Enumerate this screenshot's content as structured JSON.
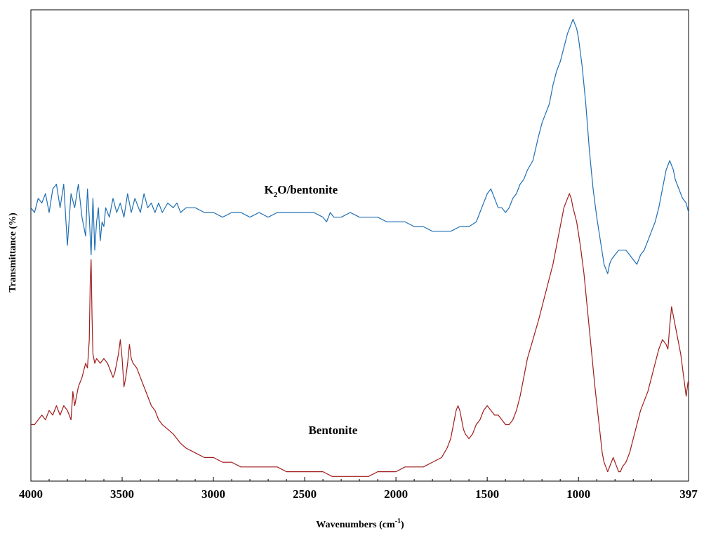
{
  "chart_data": {
    "type": "line",
    "title": "",
    "xlabel": "Wavenumbers (cm",
    "xlabel_sup": "-1",
    "xlabel_end": ")",
    "ylabel": "Transmittance (%)",
    "xlim": [
      4000,
      397
    ],
    "x_reversed": true,
    "ylim": [
      0,
      100
    ],
    "grid": false,
    "y_ticks_shown": false,
    "x_ticks": [
      {
        "value": 4000,
        "label": "4000"
      },
      {
        "value": 3500,
        "label": "3500"
      },
      {
        "value": 3000,
        "label": "3000"
      },
      {
        "value": 2500,
        "label": "2500"
      },
      {
        "value": 2000,
        "label": "2000"
      },
      {
        "value": 1500,
        "label": "1500"
      },
      {
        "value": 1000,
        "label": "1000"
      },
      {
        "value": 397,
        "label": "397"
      }
    ],
    "series": [
      {
        "name": "K2O/bentonite",
        "label_main": "K",
        "label_sub": "2",
        "label_rest": "O/bentonite",
        "label_anchor": [
          2520,
          61
        ],
        "color": "#1f6fb4",
        "points": [
          [
            4000,
            58
          ],
          [
            3980,
            57
          ],
          [
            3960,
            60
          ],
          [
            3940,
            59
          ],
          [
            3920,
            61
          ],
          [
            3900,
            57
          ],
          [
            3880,
            62
          ],
          [
            3860,
            63
          ],
          [
            3840,
            58
          ],
          [
            3820,
            63
          ],
          [
            3800,
            50
          ],
          [
            3780,
            61
          ],
          [
            3760,
            58
          ],
          [
            3740,
            63
          ],
          [
            3720,
            56
          ],
          [
            3700,
            52
          ],
          [
            3690,
            62
          ],
          [
            3680,
            56
          ],
          [
            3670,
            48
          ],
          [
            3660,
            60
          ],
          [
            3650,
            49
          ],
          [
            3640,
            55
          ],
          [
            3630,
            58
          ],
          [
            3620,
            51
          ],
          [
            3610,
            55
          ],
          [
            3600,
            54
          ],
          [
            3590,
            58
          ],
          [
            3570,
            56
          ],
          [
            3550,
            60
          ],
          [
            3530,
            57
          ],
          [
            3510,
            59
          ],
          [
            3490,
            56
          ],
          [
            3470,
            61
          ],
          [
            3450,
            57
          ],
          [
            3430,
            60
          ],
          [
            3400,
            57
          ],
          [
            3380,
            61
          ],
          [
            3360,
            58
          ],
          [
            3340,
            59
          ],
          [
            3320,
            57
          ],
          [
            3300,
            59
          ],
          [
            3280,
            57
          ],
          [
            3250,
            59
          ],
          [
            3220,
            58
          ],
          [
            3200,
            59
          ],
          [
            3180,
            57
          ],
          [
            3150,
            58
          ],
          [
            3100,
            58
          ],
          [
            3050,
            57
          ],
          [
            3000,
            57
          ],
          [
            2950,
            56
          ],
          [
            2900,
            57
          ],
          [
            2850,
            57
          ],
          [
            2800,
            56
          ],
          [
            2750,
            57
          ],
          [
            2700,
            56
          ],
          [
            2650,
            57
          ],
          [
            2600,
            57
          ],
          [
            2550,
            57
          ],
          [
            2500,
            57
          ],
          [
            2450,
            57
          ],
          [
            2400,
            56
          ],
          [
            2380,
            55
          ],
          [
            2360,
            57
          ],
          [
            2340,
            56
          ],
          [
            2300,
            56
          ],
          [
            2250,
            57
          ],
          [
            2200,
            56
          ],
          [
            2150,
            56
          ],
          [
            2100,
            56
          ],
          [
            2050,
            55
          ],
          [
            2000,
            55
          ],
          [
            1950,
            55
          ],
          [
            1900,
            54
          ],
          [
            1850,
            54
          ],
          [
            1800,
            53
          ],
          [
            1750,
            53
          ],
          [
            1700,
            53
          ],
          [
            1650,
            54
          ],
          [
            1600,
            54
          ],
          [
            1560,
            55
          ],
          [
            1530,
            58
          ],
          [
            1500,
            61
          ],
          [
            1480,
            62
          ],
          [
            1460,
            60
          ],
          [
            1440,
            58
          ],
          [
            1420,
            58
          ],
          [
            1400,
            57
          ],
          [
            1380,
            58
          ],
          [
            1360,
            60
          ],
          [
            1340,
            61
          ],
          [
            1320,
            63
          ],
          [
            1300,
            64
          ],
          [
            1280,
            66
          ],
          [
            1250,
            68
          ],
          [
            1220,
            73
          ],
          [
            1200,
            76
          ],
          [
            1180,
            78
          ],
          [
            1160,
            80
          ],
          [
            1140,
            84
          ],
          [
            1120,
            87
          ],
          [
            1100,
            89
          ],
          [
            1080,
            92
          ],
          [
            1060,
            95
          ],
          [
            1040,
            97
          ],
          [
            1030,
            98
          ],
          [
            1020,
            97
          ],
          [
            1010,
            96
          ],
          [
            1000,
            94
          ],
          [
            990,
            91
          ],
          [
            980,
            88
          ],
          [
            960,
            80
          ],
          [
            940,
            70
          ],
          [
            920,
            62
          ],
          [
            900,
            56
          ],
          [
            880,
            51
          ],
          [
            860,
            46
          ],
          [
            850,
            45
          ],
          [
            840,
            44
          ],
          [
            830,
            46
          ],
          [
            820,
            47
          ],
          [
            800,
            48
          ],
          [
            780,
            49
          ],
          [
            760,
            49
          ],
          [
            740,
            49
          ],
          [
            720,
            48
          ],
          [
            700,
            47
          ],
          [
            680,
            46
          ],
          [
            670,
            47
          ],
          [
            660,
            48
          ],
          [
            640,
            49
          ],
          [
            620,
            51
          ],
          [
            600,
            53
          ],
          [
            580,
            55
          ],
          [
            560,
            58
          ],
          [
            540,
            62
          ],
          [
            520,
            66
          ],
          [
            500,
            68
          ],
          [
            490,
            67
          ],
          [
            480,
            66
          ],
          [
            470,
            64
          ],
          [
            450,
            62
          ],
          [
            430,
            60
          ],
          [
            410,
            59
          ],
          [
            397,
            57
          ]
        ]
      },
      {
        "name": "Bentonite",
        "label_anchor": [
          2345,
          10
        ],
        "color": "#a01c1c",
        "points": [
          [
            4000,
            12
          ],
          [
            3980,
            12
          ],
          [
            3960,
            13
          ],
          [
            3940,
            14
          ],
          [
            3920,
            13
          ],
          [
            3900,
            15
          ],
          [
            3880,
            14
          ],
          [
            3860,
            16
          ],
          [
            3840,
            14
          ],
          [
            3820,
            16
          ],
          [
            3800,
            15
          ],
          [
            3780,
            13
          ],
          [
            3770,
            19
          ],
          [
            3760,
            16
          ],
          [
            3740,
            20
          ],
          [
            3720,
            22
          ],
          [
            3700,
            25
          ],
          [
            3690,
            24
          ],
          [
            3680,
            30
          ],
          [
            3675,
            42
          ],
          [
            3670,
            47
          ],
          [
            3665,
            35
          ],
          [
            3660,
            27
          ],
          [
            3650,
            25
          ],
          [
            3640,
            26
          ],
          [
            3620,
            25
          ],
          [
            3600,
            26
          ],
          [
            3580,
            25
          ],
          [
            3560,
            23
          ],
          [
            3550,
            22
          ],
          [
            3540,
            23
          ],
          [
            3530,
            25
          ],
          [
            3520,
            27
          ],
          [
            3510,
            30
          ],
          [
            3500,
            26
          ],
          [
            3490,
            20
          ],
          [
            3480,
            22
          ],
          [
            3470,
            25
          ],
          [
            3460,
            29
          ],
          [
            3450,
            26
          ],
          [
            3440,
            25
          ],
          [
            3420,
            24
          ],
          [
            3400,
            22
          ],
          [
            3380,
            20
          ],
          [
            3360,
            18
          ],
          [
            3340,
            16
          ],
          [
            3320,
            15
          ],
          [
            3300,
            13
          ],
          [
            3280,
            12
          ],
          [
            3250,
            11
          ],
          [
            3220,
            10
          ],
          [
            3200,
            9
          ],
          [
            3180,
            8
          ],
          [
            3150,
            7
          ],
          [
            3100,
            6
          ],
          [
            3050,
            5
          ],
          [
            3000,
            5
          ],
          [
            2950,
            4
          ],
          [
            2900,
            4
          ],
          [
            2850,
            3
          ],
          [
            2800,
            3
          ],
          [
            2750,
            3
          ],
          [
            2700,
            3
          ],
          [
            2650,
            3
          ],
          [
            2600,
            2
          ],
          [
            2550,
            2
          ],
          [
            2500,
            2
          ],
          [
            2450,
            2
          ],
          [
            2400,
            2
          ],
          [
            2350,
            1
          ],
          [
            2300,
            1
          ],
          [
            2250,
            1
          ],
          [
            2200,
            1
          ],
          [
            2150,
            1
          ],
          [
            2100,
            2
          ],
          [
            2050,
            2
          ],
          [
            2000,
            2
          ],
          [
            1950,
            3
          ],
          [
            1900,
            3
          ],
          [
            1850,
            3
          ],
          [
            1800,
            4
          ],
          [
            1750,
            5
          ],
          [
            1720,
            7
          ],
          [
            1700,
            9
          ],
          [
            1690,
            11
          ],
          [
            1680,
            13
          ],
          [
            1670,
            15
          ],
          [
            1660,
            16
          ],
          [
            1650,
            15
          ],
          [
            1640,
            13
          ],
          [
            1630,
            11
          ],
          [
            1620,
            10
          ],
          [
            1600,
            9
          ],
          [
            1580,
            10
          ],
          [
            1560,
            12
          ],
          [
            1540,
            13
          ],
          [
            1520,
            15
          ],
          [
            1500,
            16
          ],
          [
            1480,
            15
          ],
          [
            1460,
            14
          ],
          [
            1440,
            14
          ],
          [
            1420,
            13
          ],
          [
            1400,
            12
          ],
          [
            1380,
            12
          ],
          [
            1360,
            13
          ],
          [
            1340,
            15
          ],
          [
            1320,
            18
          ],
          [
            1300,
            22
          ],
          [
            1280,
            26
          ],
          [
            1250,
            30
          ],
          [
            1220,
            34
          ],
          [
            1200,
            37
          ],
          [
            1180,
            40
          ],
          [
            1160,
            43
          ],
          [
            1140,
            46
          ],
          [
            1120,
            50
          ],
          [
            1100,
            54
          ],
          [
            1080,
            58
          ],
          [
            1060,
            60
          ],
          [
            1050,
            61
          ],
          [
            1040,
            60
          ],
          [
            1030,
            58
          ],
          [
            1010,
            55
          ],
          [
            990,
            50
          ],
          [
            970,
            44
          ],
          [
            950,
            36
          ],
          [
            930,
            28
          ],
          [
            910,
            20
          ],
          [
            890,
            13
          ],
          [
            870,
            6
          ],
          [
            860,
            4
          ],
          [
            850,
            3
          ],
          [
            840,
            2
          ],
          [
            830,
            3
          ],
          [
            820,
            4
          ],
          [
            810,
            5
          ],
          [
            800,
            4
          ],
          [
            790,
            3
          ],
          [
            780,
            2
          ],
          [
            770,
            2
          ],
          [
            760,
            3
          ],
          [
            740,
            4
          ],
          [
            720,
            6
          ],
          [
            700,
            9
          ],
          [
            680,
            12
          ],
          [
            660,
            15
          ],
          [
            640,
            17
          ],
          [
            620,
            19
          ],
          [
            600,
            22
          ],
          [
            580,
            25
          ],
          [
            560,
            28
          ],
          [
            540,
            30
          ],
          [
            520,
            29
          ],
          [
            510,
            28
          ],
          [
            500,
            33
          ],
          [
            490,
            37
          ],
          [
            480,
            35
          ],
          [
            470,
            33
          ],
          [
            460,
            31
          ],
          [
            450,
            29
          ],
          [
            440,
            27
          ],
          [
            430,
            24
          ],
          [
            420,
            21
          ],
          [
            410,
            18
          ],
          [
            400,
            21
          ],
          [
            397,
            20
          ]
        ]
      }
    ]
  }
}
